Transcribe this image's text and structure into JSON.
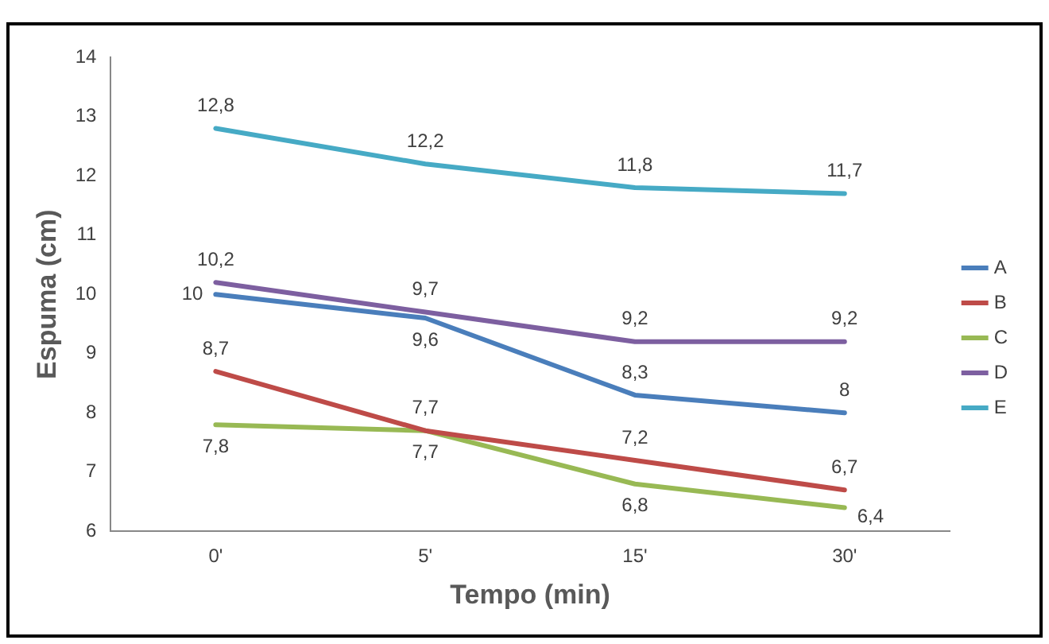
{
  "chart_data": {
    "type": "line",
    "xlabel": "Tempo (min)",
    "ylabel": "Espuma (cm)",
    "categories": [
      "0'",
      "5'",
      "15'",
      "30'"
    ],
    "ylim": [
      6,
      14
    ],
    "yticks": [
      6,
      7,
      8,
      9,
      10,
      11,
      12,
      13,
      14
    ],
    "grid": false,
    "legend": "right",
    "marker": "none",
    "series": [
      {
        "name": "A",
        "color": "#4a7ebb",
        "values": [
          10,
          9.6,
          8.3,
          8
        ],
        "value_labels": [
          "10",
          "9,6",
          "8,3",
          "8"
        ]
      },
      {
        "name": "B",
        "color": "#be4b48",
        "values": [
          8.7,
          7.7,
          7.2,
          6.7
        ],
        "value_labels": [
          "8,7",
          "7,7",
          "7,2",
          "6,7"
        ]
      },
      {
        "name": "C",
        "color": "#98b954",
        "values": [
          7.8,
          7.7,
          6.8,
          6.4
        ],
        "value_labels": [
          "7,8",
          "7,7",
          "6,8",
          "6,4"
        ]
      },
      {
        "name": "D",
        "color": "#7d5fa0",
        "values": [
          10.2,
          9.7,
          9.2,
          9.2
        ],
        "value_labels": [
          "10,2",
          "9,7",
          "9,2",
          "9,2"
        ]
      },
      {
        "name": "E",
        "color": "#46aac5",
        "values": [
          12.8,
          12.2,
          11.8,
          11.7
        ],
        "value_labels": [
          "12,8",
          "12,2",
          "11,8",
          "11,7"
        ]
      }
    ]
  }
}
